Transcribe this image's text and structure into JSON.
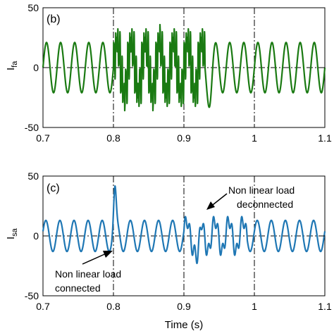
{
  "chart_data": [
    {
      "panel_label": "(b)",
      "type": "line",
      "xlabel": "",
      "ylabel_main": "I",
      "ylabel_sub": "fa",
      "xlim": [
        0.7,
        1.1
      ],
      "ylim": [
        -50,
        50
      ],
      "xticks": [
        "0.7",
        "0.8",
        "0.9",
        "1",
        "1.1"
      ],
      "yticks": [
        "-50",
        "0",
        "50"
      ],
      "x_tick_values": [
        0.7,
        0.8,
        0.9,
        1.0,
        1.1
      ],
      "y_tick_values": [
        -50,
        0,
        50
      ],
      "color": "#1a7a12",
      "event_lines_x": [
        0.8,
        0.9,
        1.0
      ],
      "reference_lines_y": [
        0,
        -50
      ],
      "series": [
        {
          "description": "filter current: ~20 A sinusoid at 50 Hz, distorted between 0.8 s and 0.93 s",
          "base_amplitude": 21,
          "frequency_hz": 50,
          "distorted_interval": [
            0.8,
            0.93
          ]
        }
      ]
    },
    {
      "panel_label": "(c)",
      "type": "line",
      "xlabel": "Time (s)",
      "ylabel_main": "I",
      "ylabel_sub": "sa",
      "xlim": [
        0.7,
        1.1
      ],
      "ylim": [
        -50,
        50
      ],
      "xticks": [
        "0.7",
        "0.8",
        "0.9",
        "1",
        "1.1"
      ],
      "yticks": [
        "-50",
        "0",
        "50"
      ],
      "x_tick_values": [
        0.7,
        0.8,
        0.9,
        1.0,
        1.1
      ],
      "y_tick_values": [
        -50,
        0,
        50
      ],
      "color": "#1f77b4",
      "event_lines_x": [
        0.8,
        0.9,
        1.0
      ],
      "reference_lines_y": [
        0
      ],
      "series": [
        {
          "description": "source current: ~13 A sinusoid at 50 Hz, spike to ~44 at 0.802 s, dip to ~-32 near 0.92 s",
          "base_amplitude": 13,
          "frequency_hz": 50,
          "peak_value": 44,
          "peak_time": 0.802,
          "dip_value": -32,
          "dip_time": 0.92
        }
      ],
      "annotations": [
        {
          "lines": [
            "Non linear load",
            "connected"
          ],
          "arrow_to": [
            0.795,
            -12
          ]
        },
        {
          "lines": [
            "Non linear load",
            "deconnected"
          ],
          "arrow_to": [
            0.93,
            20
          ]
        }
      ]
    }
  ]
}
